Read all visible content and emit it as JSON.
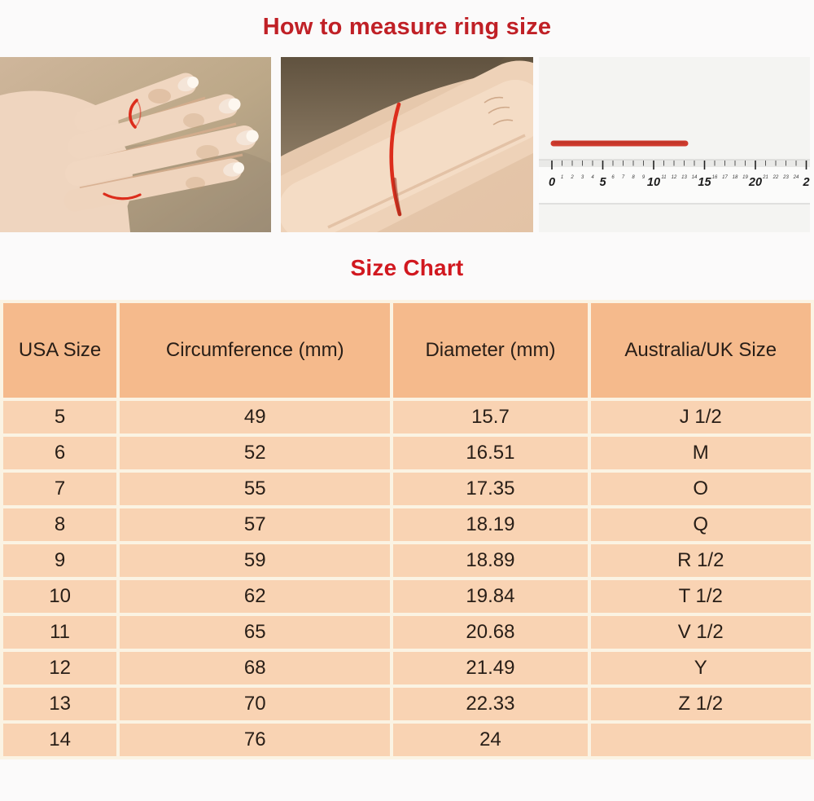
{
  "page": {
    "title": "How to measure ring size",
    "subtitle": "Size Chart"
  },
  "photos": {
    "ruler": {
      "cm_labels": [
        "0",
        "1",
        "2",
        "3",
        "4",
        "5",
        "6",
        "7",
        "8",
        "9",
        "10",
        "11",
        "12",
        "13",
        "14",
        "15",
        "16",
        "17",
        "18",
        "19",
        "20",
        "21",
        "22",
        "23",
        "24",
        "2"
      ],
      "string_length_cm": 13
    }
  },
  "table": {
    "headers": [
      "USA Size",
      "Circumference (mm)",
      "Diameter (mm)",
      "Australia/UK Size"
    ],
    "rows": [
      [
        "5",
        "49",
        "15.7",
        "J 1/2"
      ],
      [
        "6",
        "52",
        "16.51",
        "M"
      ],
      [
        "7",
        "55",
        "17.35",
        "O"
      ],
      [
        "8",
        "57",
        "18.19",
        "Q"
      ],
      [
        "9",
        "59",
        "18.89",
        "R 1/2"
      ],
      [
        "10",
        "62",
        "19.84",
        "T 1/2"
      ],
      [
        "11",
        "65",
        "20.68",
        "V 1/2"
      ],
      [
        "12",
        "68",
        "21.49",
        "Y"
      ],
      [
        "13",
        "70",
        "22.33",
        "Z 1/2"
      ],
      [
        "14",
        "76",
        "24",
        ""
      ]
    ]
  },
  "colors": {
    "title_red": "#c02026",
    "subtitle_red": "#d1181f",
    "table_header_bg": "#f5ba8c",
    "table_row_bg": "#f9d3b3",
    "table_gap": "#fbf3e3",
    "table_text": "#281e17",
    "string_red": "#dc2d1c"
  }
}
